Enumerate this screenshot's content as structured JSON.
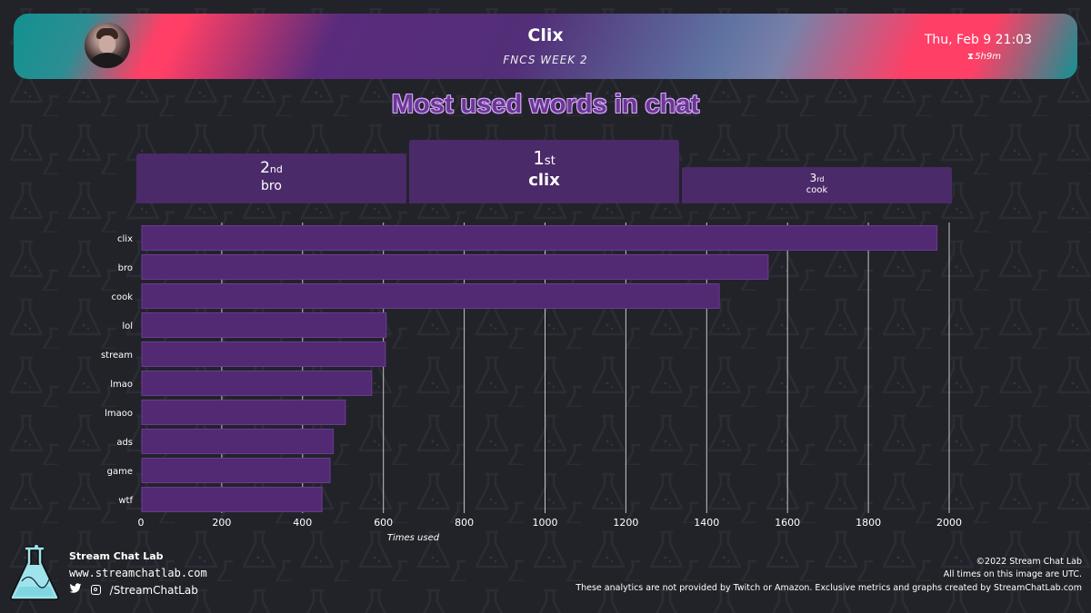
{
  "header": {
    "streamer": "Clix",
    "subtitle": "FNCS WEEK 2",
    "date": "Thu, Feb 9 21:03",
    "duration": "5h9m",
    "hourglass": "⧗"
  },
  "title": "Most used words in chat",
  "podium": [
    {
      "rank": "1",
      "suffix": "st",
      "word": "clix"
    },
    {
      "rank": "2",
      "suffix": "nd",
      "word": "bro"
    },
    {
      "rank": "3",
      "suffix": "rd",
      "word": "cook"
    }
  ],
  "chart_data": {
    "type": "bar",
    "orientation": "horizontal",
    "categories": [
      "clix",
      "bro",
      "cook",
      "lol",
      "stream",
      "lmao",
      "lmaoo",
      "ads",
      "game",
      "wtf"
    ],
    "values": [
      1970,
      1552,
      1431,
      607,
      605,
      571,
      506,
      476,
      468,
      448
    ],
    "xlabel": "Times used",
    "ylabel": "",
    "xlim": [
      0,
      2000
    ],
    "xticks": [
      0,
      200,
      400,
      600,
      800,
      1000,
      1200,
      1400,
      1600,
      1800,
      2000
    ],
    "grid": "vertical",
    "bar_color": "#522a73",
    "bar_stroke": "#6a3b92"
  },
  "footer": {
    "brand": "Stream Chat Lab",
    "url": "www.streamchatlab.com",
    "social": "/StreamChatLab",
    "copyright": "©2022 Stream Chat Lab",
    "utc_note": "All times on this image are UTC.",
    "disclaimer": "These analytics are not provided by Twitch or Amazon. Exclusive metrics and graphs created by StreamChatLab.com"
  },
  "icons": [
    "hourglass-icon",
    "twitter-icon",
    "instagram-icon",
    "flask-logo-icon"
  ],
  "colors": {
    "background": "#222329",
    "podium": "#4b2a69",
    "title_fill": "#6a3890",
    "title_outline": "#d6a8ff"
  }
}
